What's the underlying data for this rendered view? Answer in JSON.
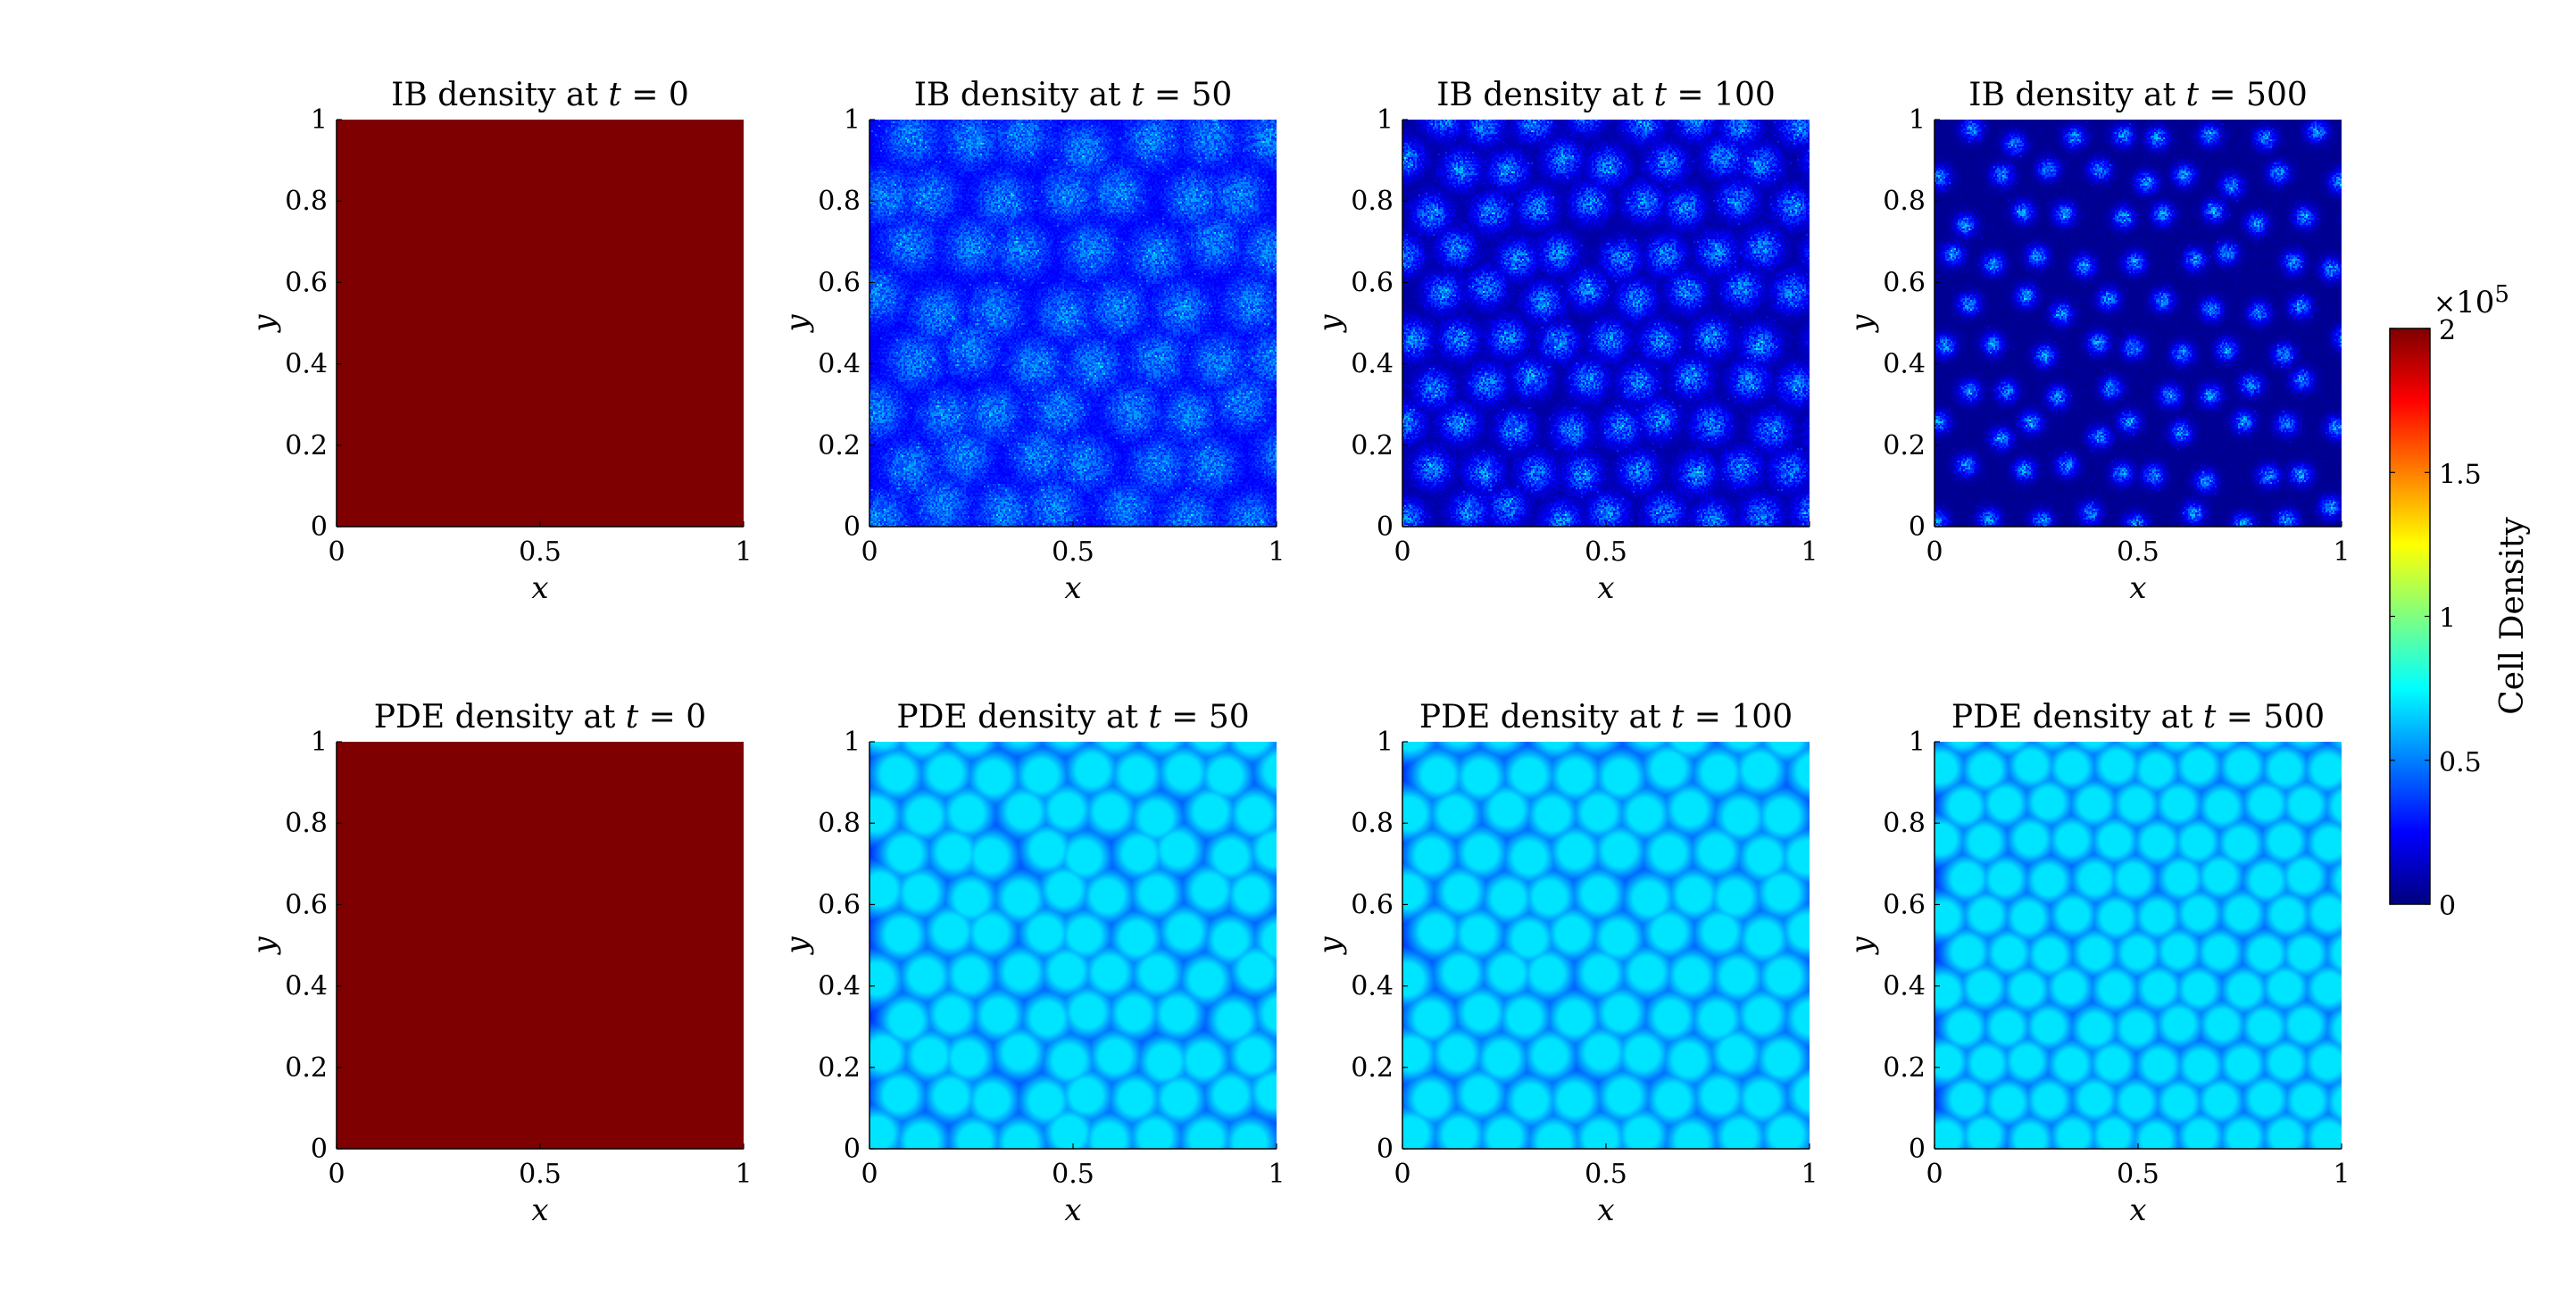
{
  "colors": {
    "background": "#ffffff",
    "uniform_field": "#7f0000",
    "colormap": "jet",
    "axis_line": "#000000"
  },
  "chart_data": [
    {
      "type": "heatmap",
      "id": "ib-t0",
      "title": "IB density at t = 0",
      "title_prefix": "IB density at ",
      "time_symbol": "t",
      "time_value": "= 0",
      "xlabel": "x",
      "ylabel": "y",
      "xlim": [
        0,
        1
      ],
      "ylim": [
        0,
        1
      ],
      "xticks": [
        "0",
        "0.5",
        "1"
      ],
      "yticks": [
        "0",
        "0.2",
        "0.4",
        "0.6",
        "0.8",
        "1"
      ],
      "pattern": "uniform",
      "uniform_value": 200000
    },
    {
      "type": "heatmap",
      "id": "ib-t50",
      "title": "IB density at t = 50",
      "title_prefix": "IB density at ",
      "time_symbol": "t",
      "time_value": "= 50",
      "xlabel": "x",
      "ylabel": "y",
      "xlim": [
        0,
        1
      ],
      "ylim": [
        0,
        1
      ],
      "xticks": [
        "0",
        "0.5",
        "1"
      ],
      "yticks": [
        "0",
        "0.2",
        "0.4",
        "0.6",
        "0.8",
        "1"
      ],
      "pattern": "noisy-spots",
      "approx_spot_peak": 60000,
      "approx_background": 20000
    },
    {
      "type": "heatmap",
      "id": "ib-t100",
      "title": "IB density at t = 100",
      "title_prefix": "IB density at ",
      "time_symbol": "t",
      "time_value": "= 100",
      "xlabel": "x",
      "ylabel": "y",
      "xlim": [
        0,
        1
      ],
      "ylim": [
        0,
        1
      ],
      "xticks": [
        "0",
        "0.5",
        "1"
      ],
      "yticks": [
        "0",
        "0.2",
        "0.4",
        "0.6",
        "0.8",
        "1"
      ],
      "pattern": "noisy-spots",
      "approx_spot_peak": 65000,
      "approx_background": 5000
    },
    {
      "type": "heatmap",
      "id": "ib-t500",
      "title": "IB density at t = 500",
      "title_prefix": "IB density at ",
      "time_symbol": "t",
      "time_value": "= 500",
      "xlabel": "x",
      "ylabel": "y",
      "xlim": [
        0,
        1
      ],
      "ylim": [
        0,
        1
      ],
      "xticks": [
        "0",
        "0.5",
        "1"
      ],
      "yticks": [
        "0",
        "0.2",
        "0.4",
        "0.6",
        "0.8",
        "1"
      ],
      "pattern": "noisy-spots",
      "approx_spot_peak": 70000,
      "approx_background": 3000
    },
    {
      "type": "heatmap",
      "id": "pde-t0",
      "title": "PDE density at t = 0",
      "title_prefix": "PDE density at ",
      "time_symbol": "t",
      "time_value": "= 0",
      "xlabel": "x",
      "ylabel": "y",
      "xlim": [
        0,
        1
      ],
      "ylim": [
        0,
        1
      ],
      "xticks": [
        "0",
        "0.5",
        "1"
      ],
      "yticks": [
        "0",
        "0.2",
        "0.4",
        "0.6",
        "0.8",
        "1"
      ],
      "pattern": "uniform",
      "uniform_value": 200000
    },
    {
      "type": "heatmap",
      "id": "pde-t50",
      "title": "PDE density at t = 50",
      "title_prefix": "PDE density at ",
      "time_symbol": "t",
      "time_value": "= 50",
      "xlabel": "x",
      "ylabel": "y",
      "xlim": [
        0,
        1
      ],
      "ylim": [
        0,
        1
      ],
      "xticks": [
        "0",
        "0.5",
        "1"
      ],
      "yticks": [
        "0",
        "0.2",
        "0.4",
        "0.6",
        "0.8",
        "1"
      ],
      "pattern": "smooth-spots",
      "approx_spot_peak": 70000,
      "approx_background": 20000
    },
    {
      "type": "heatmap",
      "id": "pde-t100",
      "title": "PDE density at t = 100",
      "title_prefix": "PDE density at ",
      "time_symbol": "t",
      "time_value": "= 100",
      "xlabel": "x",
      "ylabel": "y",
      "xlim": [
        0,
        1
      ],
      "ylim": [
        0,
        1
      ],
      "xticks": [
        "0",
        "0.5",
        "1"
      ],
      "yticks": [
        "0",
        "0.2",
        "0.4",
        "0.6",
        "0.8",
        "1"
      ],
      "pattern": "smooth-spots",
      "approx_spot_peak": 70000,
      "approx_background": 20000
    },
    {
      "type": "heatmap",
      "id": "pde-t500",
      "title": "PDE density at t = 500",
      "title_prefix": "PDE density at ",
      "time_symbol": "t",
      "time_value": "= 500",
      "xlabel": "x",
      "ylabel": "y",
      "xlim": [
        0,
        1
      ],
      "ylim": [
        0,
        1
      ],
      "xticks": [
        "0",
        "0.5",
        "1"
      ],
      "yticks": [
        "0",
        "0.2",
        "0.4",
        "0.6",
        "0.8",
        "1"
      ],
      "pattern": "smooth-spots",
      "approx_spot_peak": 70000,
      "approx_background": 20000
    }
  ],
  "colorbar": {
    "label": "Cell Density",
    "range": [
      0,
      200000
    ],
    "ticks": [
      "0",
      "0.5",
      "1",
      "1.5",
      "2"
    ],
    "exponent_base": "10",
    "exponent_power": "5",
    "exponent_prefix": "×"
  }
}
